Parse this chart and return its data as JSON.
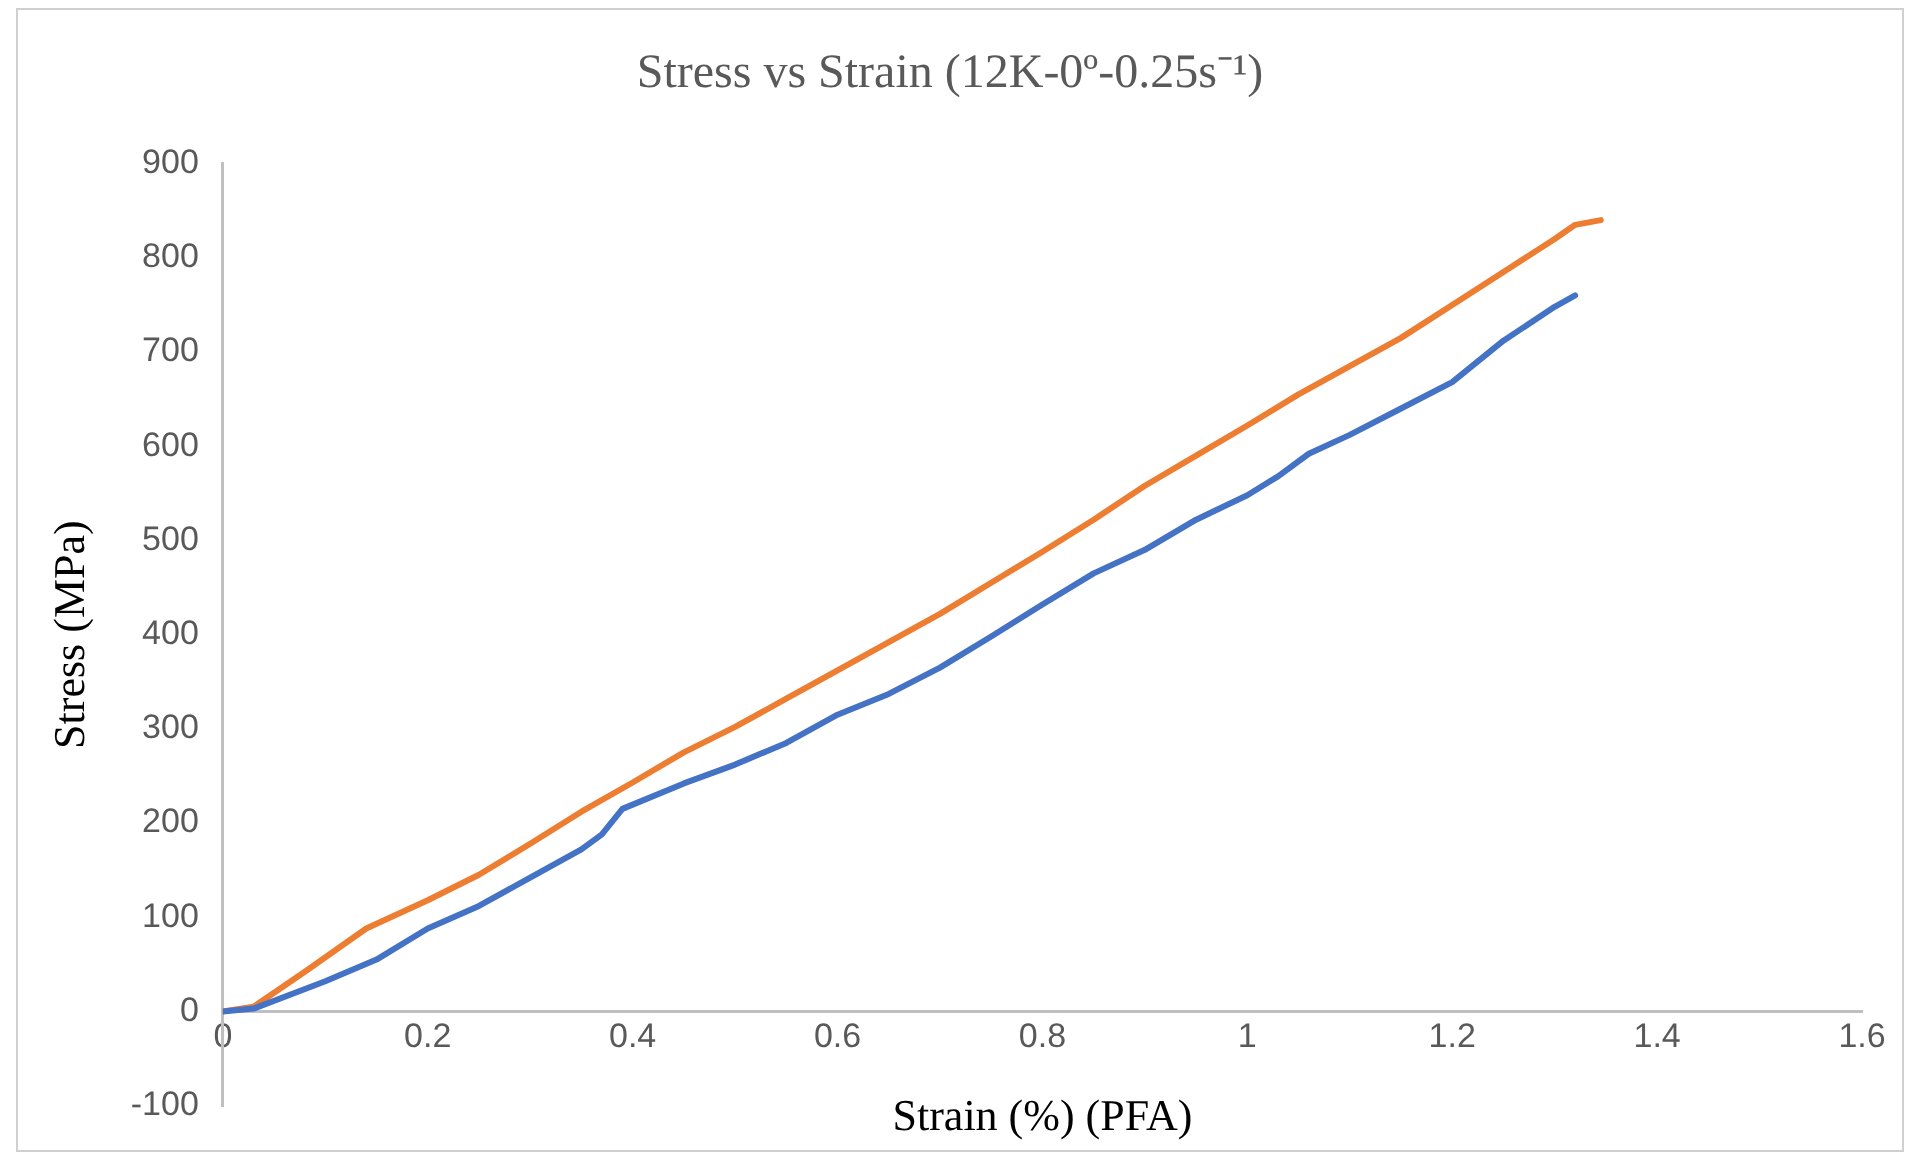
{
  "chart_data": {
    "type": "line",
    "title": "Stress vs Strain (12K-0º-0.25s⁻¹)",
    "xlabel": "Strain (%) (PFA)",
    "ylabel": "Stress (MPa)",
    "xlim": [
      0,
      1.6
    ],
    "xticks": [
      0,
      0.2,
      0.4,
      0.6,
      0.8,
      1,
      1.2,
      1.4,
      1.6
    ],
    "ylim": [
      -100,
      900
    ],
    "yticks": [
      -100,
      0,
      100,
      200,
      300,
      400,
      500,
      600,
      700,
      800,
      900
    ],
    "grid": false,
    "legend": false,
    "marker": "none",
    "line_style": "solid",
    "series": [
      {
        "color": "#4472c4",
        "x": [
          0,
          0.03,
          0.1,
          0.15,
          0.2,
          0.25,
          0.3,
          0.35,
          0.37,
          0.39,
          0.45,
          0.5,
          0.55,
          0.6,
          0.65,
          0.7,
          0.75,
          0.8,
          0.85,
          0.9,
          0.95,
          1.0,
          1.03,
          1.06,
          1.1,
          1.15,
          1.2,
          1.25,
          1.3,
          1.32
        ],
        "values": [
          0,
          3,
          32,
          55,
          88,
          112,
          142,
          172,
          188,
          215,
          242,
          262,
          285,
          315,
          337,
          365,
          398,
          432,
          465,
          490,
          522,
          548,
          568,
          592,
          612,
          640,
          668,
          712,
          748,
          760
        ]
      },
      {
        "color": "#ed7d31",
        "x": [
          0,
          0.03,
          0.08,
          0.14,
          0.2,
          0.25,
          0.3,
          0.35,
          0.4,
          0.45,
          0.5,
          0.55,
          0.6,
          0.65,
          0.7,
          0.75,
          0.8,
          0.85,
          0.9,
          0.95,
          1.0,
          1.05,
          1.1,
          1.15,
          1.2,
          1.25,
          1.3,
          1.32,
          1.345
        ],
        "values": [
          0,
          5,
          42,
          88,
          118,
          145,
          178,
          212,
          243,
          275,
          302,
          332,
          362,
          392,
          422,
          455,
          488,
          522,
          558,
          590,
          622,
          655,
          685,
          715,
          750,
          785,
          820,
          835,
          840
        ]
      }
    ]
  }
}
